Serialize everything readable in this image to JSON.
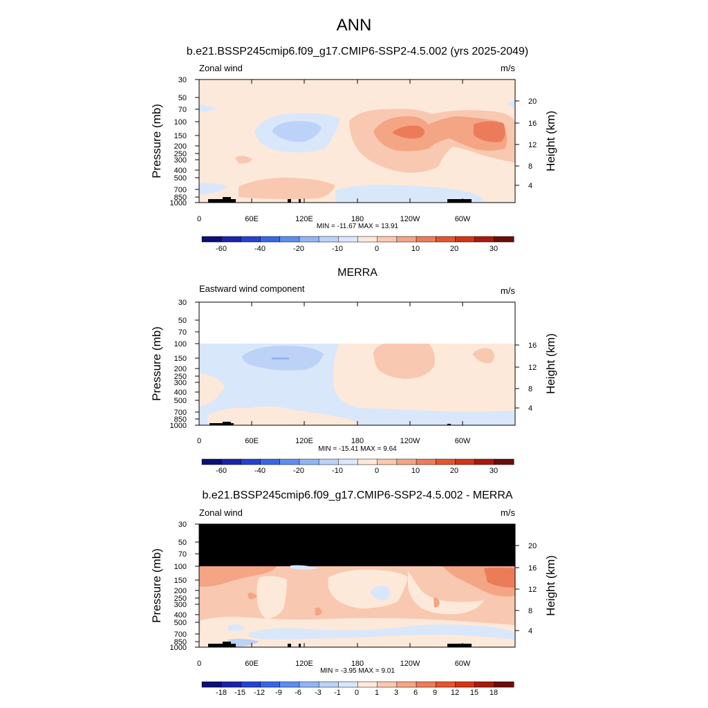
{
  "page": {
    "title": "ANN"
  },
  "chart_data": [
    {
      "type": "contour",
      "title": "b.e21.BSSP245cmip6.f09_g17.CMIP6-SSP2-4.5.002 (yrs 2025-2049)",
      "left_label": "Zonal wind",
      "units": "m/s",
      "ylabel": "Pressure (mb)",
      "ylabel_right": "Height (km)",
      "x_ticks": [
        "0",
        "60E",
        "120E",
        "180",
        "120W",
        "60W"
      ],
      "y_ticks": [
        "30",
        "50",
        "70",
        "100",
        "150",
        "200",
        "250",
        "300",
        "400",
        "500",
        "700",
        "850",
        "1000"
      ],
      "y_ticks_right": [
        "20",
        "16",
        "12",
        "8",
        "4"
      ],
      "stats": "MIN = -11.67  MAX =  13.91",
      "colorbar_labels": [
        "-60",
        "-40",
        "-20",
        "-10",
        "0",
        "10",
        "20",
        "30"
      ]
    },
    {
      "type": "contour",
      "title": "MERRA",
      "left_label": "Eastward wind component",
      "units": "m/s",
      "ylabel": "Pressure (mb)",
      "ylabel_right": "Height (km)",
      "x_ticks": [
        "0",
        "60E",
        "120E",
        "180",
        "120W",
        "60W"
      ],
      "y_ticks": [
        "30",
        "50",
        "70",
        "100",
        "150",
        "200",
        "250",
        "300",
        "400",
        "500",
        "700",
        "850",
        "1000"
      ],
      "y_ticks_right": [
        "16",
        "12",
        "8",
        "4"
      ],
      "stats": "MIN = -15.41  MAX =   9.64",
      "colorbar_labels": [
        "-60",
        "-40",
        "-20",
        "-10",
        "0",
        "10",
        "20",
        "30"
      ]
    },
    {
      "type": "contour",
      "title": "b.e21.BSSP245cmip6.f09_g17.CMIP6-SSP2-4.5.002 - MERRA",
      "left_label": "Zonal wind",
      "units": "m/s",
      "ylabel": "Pressure (mb)",
      "ylabel_right": "Height (km)",
      "x_ticks": [
        "0",
        "60E",
        "120E",
        "180",
        "120W",
        "60W"
      ],
      "y_ticks": [
        "30",
        "50",
        "70",
        "100",
        "150",
        "200",
        "250",
        "300",
        "400",
        "500",
        "700",
        "850",
        "1000"
      ],
      "y_ticks_right": [
        "20",
        "16",
        "12",
        "8",
        "4"
      ],
      "stats": "MIN =  -3.95  MAX =   9.01",
      "colorbar_labels": [
        "-18",
        "-15",
        "-12",
        "-9",
        "-6",
        "-3",
        "-1",
        "0",
        "1",
        "3",
        "6",
        "9",
        "12",
        "15",
        "18"
      ]
    }
  ],
  "colors": {
    "bar16": [
      "#0c0f74",
      "#1a24a8",
      "#2442d0",
      "#3767e6",
      "#5e8ef0",
      "#93b5f5",
      "#bcd2f7",
      "#d9e7fb",
      "#fde9da",
      "#f9c8b0",
      "#f3a584",
      "#ec7c59",
      "#e4552e",
      "#d23416",
      "#a81a0d",
      "#6b0d0a"
    ],
    "land": "#000000",
    "frame": "#000000"
  }
}
